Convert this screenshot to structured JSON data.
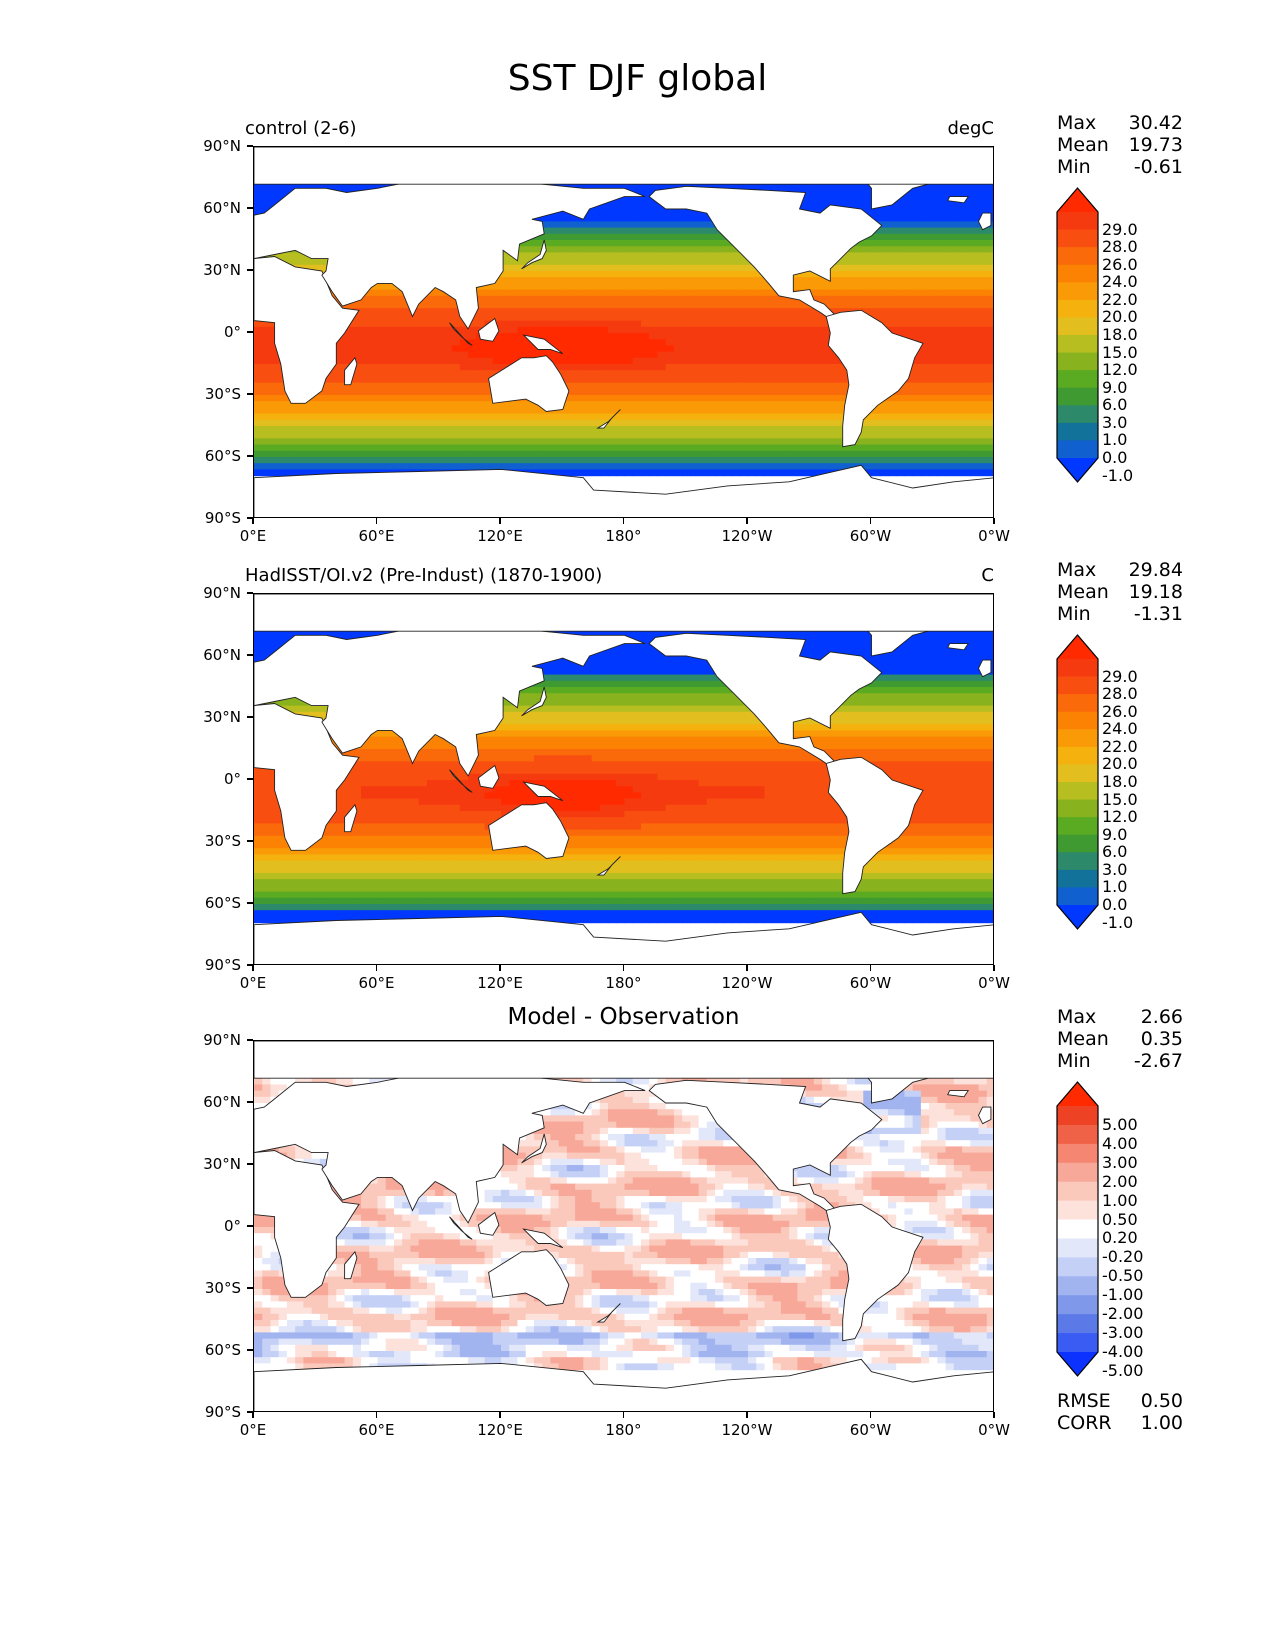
{
  "figure": {
    "title": "SST DJF global"
  },
  "axes": {
    "lat_labels": [
      "90°N",
      "60°N",
      "30°N",
      "0°",
      "30°S",
      "60°S",
      "90°S"
    ],
    "lon_labels": [
      "0°E",
      "60°E",
      "120°E",
      "180°",
      "120°W",
      "60°W",
      "0°W"
    ]
  },
  "panels": [
    {
      "left_title": "control (2-6)",
      "right_title": "degC",
      "center_title": "",
      "stats": [
        {
          "label": "Max",
          "value": "30.42"
        },
        {
          "label": "Mean",
          "value": "19.73"
        },
        {
          "label": "Min",
          "value": "-0.61"
        }
      ],
      "colorbar_labels": [
        "29.0",
        "28.0",
        "26.0",
        "24.0",
        "22.0",
        "20.0",
        "18.0",
        "15.0",
        "12.0",
        "9.0",
        "6.0",
        "3.0",
        "1.0",
        "0.0",
        "-1.0"
      ],
      "extra_stats": []
    },
    {
      "left_title": "HadISST/OI.v2 (Pre-Indust) (1870-1900)",
      "right_title": "C",
      "center_title": "",
      "stats": [
        {
          "label": "Max",
          "value": "29.84"
        },
        {
          "label": "Mean",
          "value": "19.18"
        },
        {
          "label": "Min",
          "value": "-1.31"
        }
      ],
      "colorbar_labels": [
        "29.0",
        "28.0",
        "26.0",
        "24.0",
        "22.0",
        "20.0",
        "18.0",
        "15.0",
        "12.0",
        "9.0",
        "6.0",
        "3.0",
        "1.0",
        "0.0",
        "-1.0"
      ],
      "extra_stats": []
    },
    {
      "left_title": "",
      "right_title": "",
      "center_title": "Model - Observation",
      "stats": [
        {
          "label": "Max",
          "value": "2.66"
        },
        {
          "label": "Mean",
          "value": "0.35"
        },
        {
          "label": "Min",
          "value": "-2.67"
        }
      ],
      "colorbar_labels": [
        "5.00",
        "4.00",
        "3.00",
        "2.00",
        "1.00",
        "0.50",
        "0.20",
        "-0.20",
        "-0.50",
        "-1.00",
        "-2.00",
        "-3.00",
        "-4.00",
        "-5.00"
      ],
      "extra_stats": [
        {
          "label": "RMSE",
          "value": "0.50"
        },
        {
          "label": "CORR",
          "value": "1.00"
        }
      ]
    }
  ],
  "colors": {
    "sst_scale": [
      "#0038ff",
      "#1060d0",
      "#12729a",
      "#2c8a6a",
      "#3f9a32",
      "#5aaa22",
      "#88b21e",
      "#b6be20",
      "#e2be1e",
      "#f5b20e",
      "#fa9a06",
      "#fc8204",
      "#fa6a0a",
      "#f84e10",
      "#f63a10",
      "#ff2a00"
    ],
    "diff_scale": [
      "#0c32ff",
      "#3a5cf2",
      "#5b7ae8",
      "#7f98ea",
      "#a2b4f0",
      "#c4d0f6",
      "#e2e8fa",
      "#ffffff",
      "#fde2dc",
      "#fbc8bc",
      "#f8a898",
      "#f48672",
      "#f06248",
      "#ee4224",
      "#ff2a00"
    ]
  }
}
